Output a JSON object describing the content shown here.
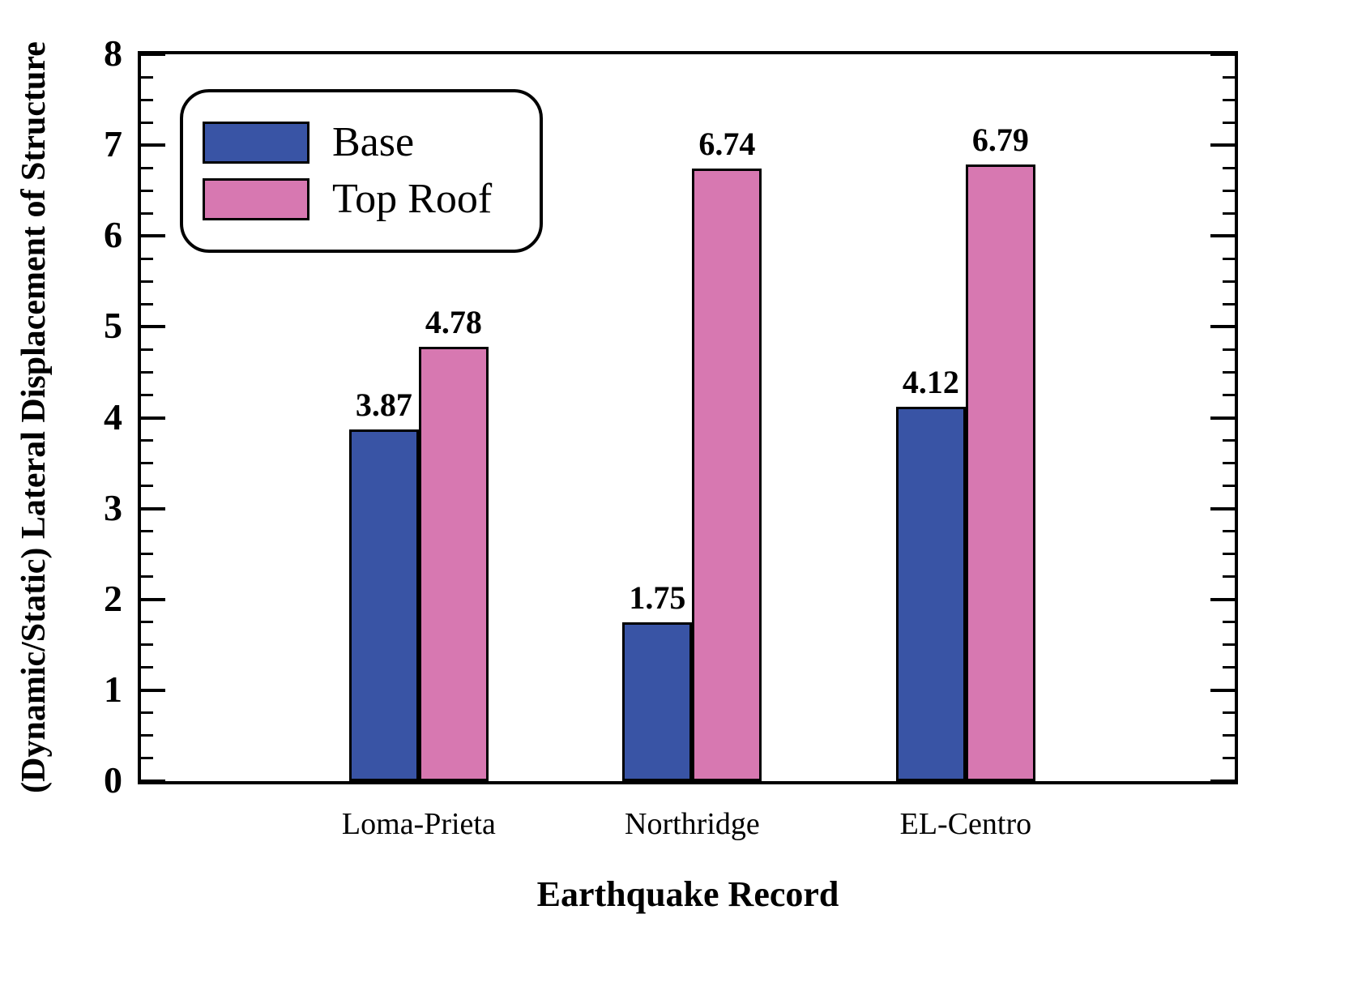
{
  "chart_data": {
    "type": "bar",
    "categories": [
      "Loma-Prieta",
      "Northridge",
      "EL-Centro"
    ],
    "series": [
      {
        "name": "Base",
        "color": "#3954a5",
        "values": [
          3.87,
          1.75,
          4.12
        ]
      },
      {
        "name": "Top Roof",
        "color": "#d778b1",
        "values": [
          4.78,
          6.74,
          6.79
        ]
      }
    ],
    "value_labels": {
      "Base": [
        "3.87",
        "1.75",
        "4.12"
      ],
      "Top Roof": [
        "4.78",
        "6.74",
        "6.79"
      ]
    },
    "title": "",
    "xlabel": "Earthquake Record",
    "ylabel": "(Dynamic/Static) Lateral Displacement of Structure",
    "ylim": [
      0,
      8
    ],
    "y_major_step": 1,
    "y_minor_step": 0.25,
    "grid": false,
    "legend_position": "top-left",
    "axis_color": "#000000",
    "background_color": "#ffffff"
  }
}
